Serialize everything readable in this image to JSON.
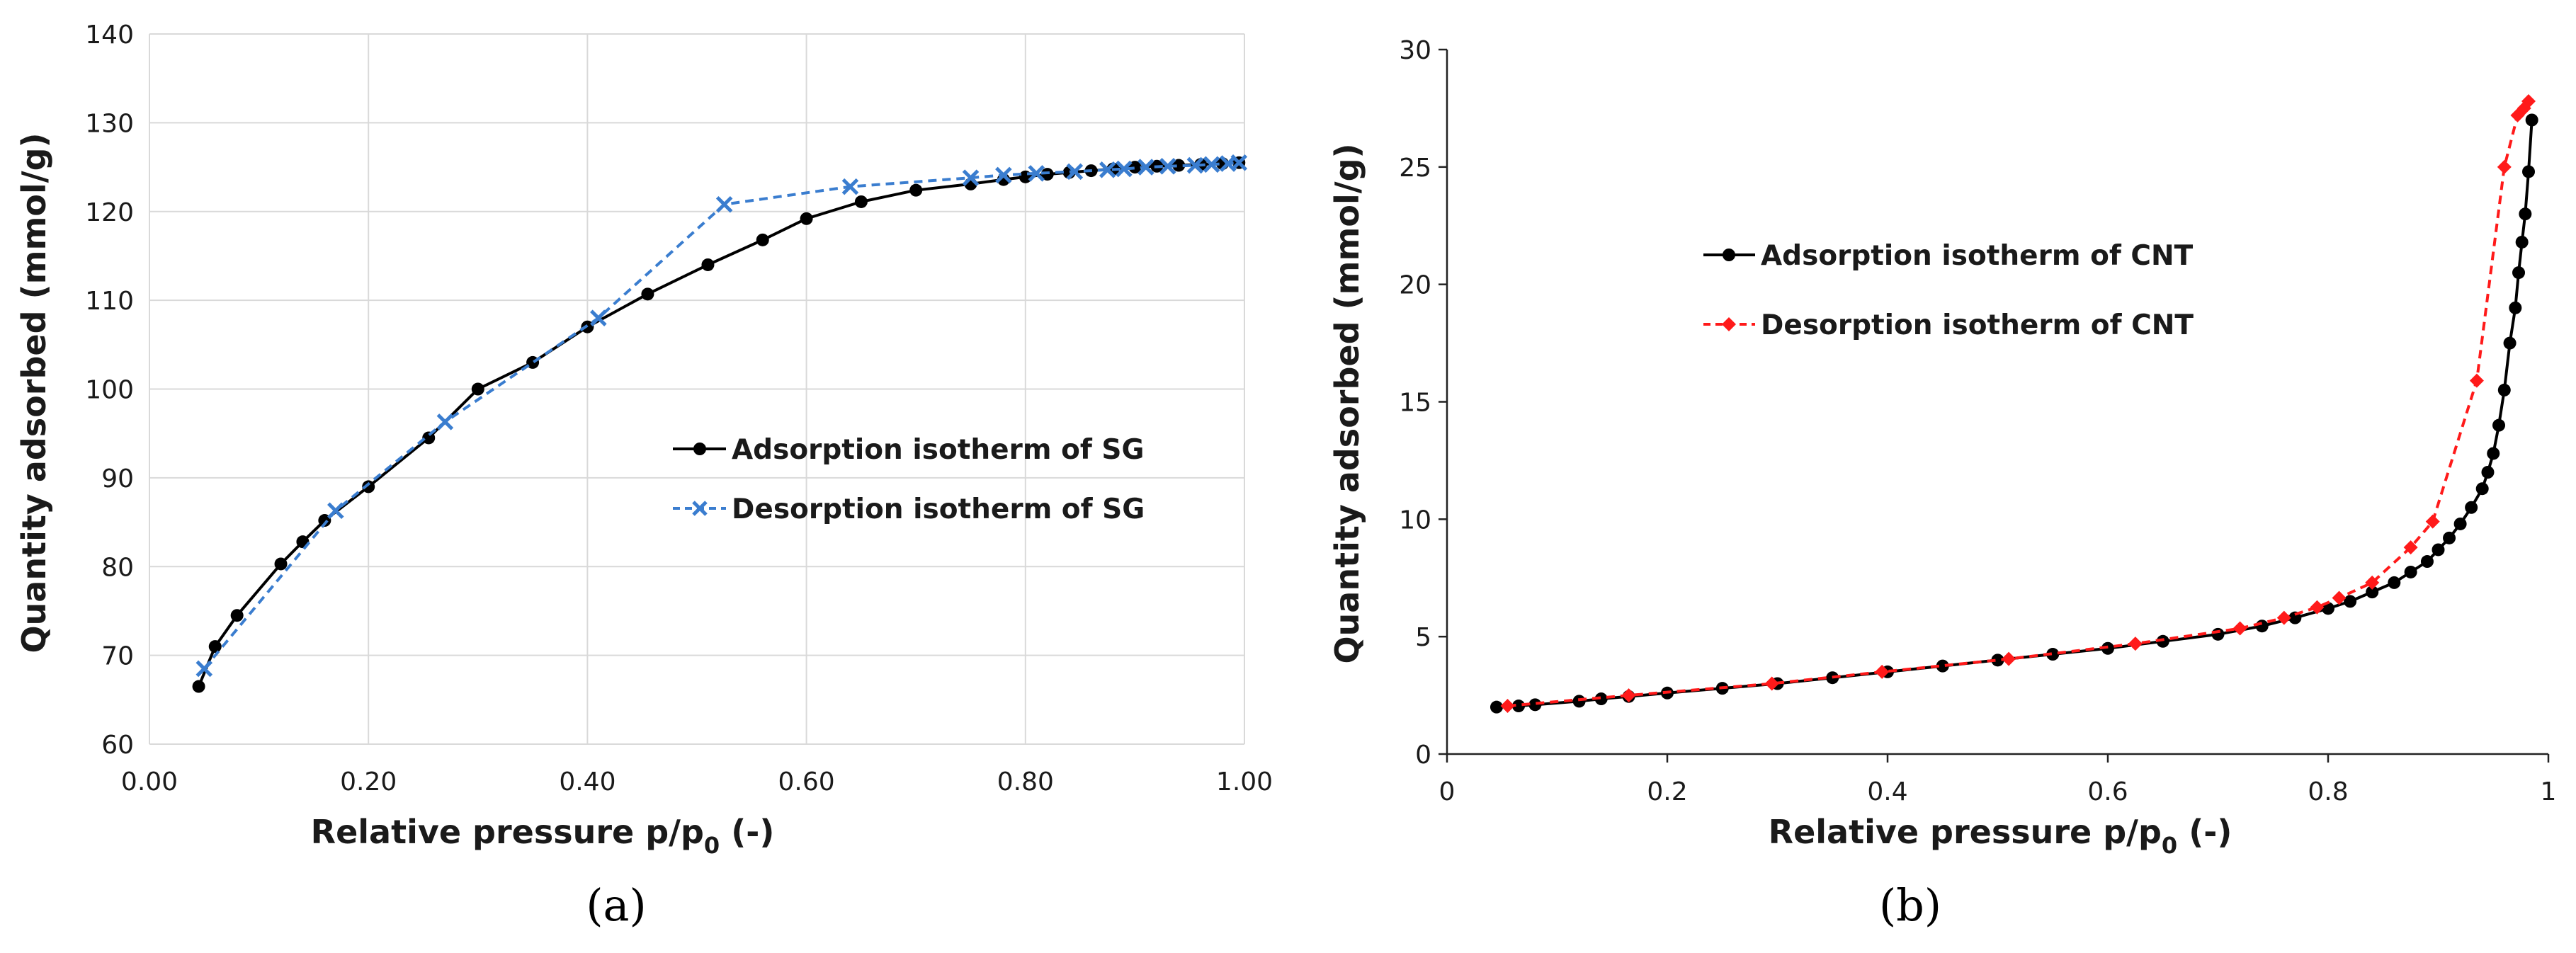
{
  "chart_data": [
    {
      "type": "line",
      "panel_label": "(a)",
      "xlabel": "Relative pressure p/p",
      "xlabel_sub": "0",
      "xlabel_suffix": " (-)",
      "ylabel": "Quantity adsorbed (mmol/g)",
      "xlim": [
        0,
        1
      ],
      "ylim": [
        60,
        140
      ],
      "xticks": [
        0,
        0.2,
        0.4,
        0.6,
        0.8,
        1.0
      ],
      "xtick_labels": [
        "0.00",
        "0.20",
        "0.40",
        "0.60",
        "0.80",
        "1.00"
      ],
      "yticks": [
        60,
        70,
        80,
        90,
        100,
        110,
        120,
        130,
        140
      ],
      "ytick_labels": [
        "60",
        "70",
        "80",
        "90",
        "100",
        "110",
        "120",
        "130",
        "140"
      ],
      "grid": true,
      "legend_position": "center-right",
      "series": [
        {
          "name": "Adsorption isotherm of SG",
          "color": "#000000",
          "marker": "circle",
          "dashed": false,
          "x": [
            0.045,
            0.06,
            0.08,
            0.12,
            0.14,
            0.16,
            0.2,
            0.255,
            0.3,
            0.35,
            0.4,
            0.455,
            0.51,
            0.56,
            0.6,
            0.65,
            0.7,
            0.75,
            0.78,
            0.8,
            0.82,
            0.84,
            0.86,
            0.88,
            0.9,
            0.92,
            0.94,
            0.96,
            0.98,
            0.995
          ],
          "y": [
            66.5,
            71,
            74.5,
            80.3,
            82.8,
            85.2,
            89,
            94.5,
            100,
            103,
            107,
            110.7,
            114,
            116.8,
            119.2,
            121.1,
            122.4,
            123.1,
            123.6,
            123.9,
            124.2,
            124.4,
            124.6,
            124.8,
            125,
            125.1,
            125.2,
            125.3,
            125.4,
            125.5
          ]
        },
        {
          "name": "Desorption isotherm of SG",
          "color": "#3a7dcf",
          "marker": "x",
          "dashed": true,
          "x": [
            0.05,
            0.17,
            0.27,
            0.41,
            0.525,
            0.64,
            0.75,
            0.78,
            0.81,
            0.845,
            0.875,
            0.89,
            0.91,
            0.93,
            0.955,
            0.97,
            0.985,
            0.995
          ],
          "y": [
            68.5,
            86.3,
            96.3,
            108,
            120.8,
            122.8,
            123.8,
            124.1,
            124.3,
            124.5,
            124.7,
            124.8,
            125,
            125.1,
            125.2,
            125.3,
            125.4,
            125.5
          ]
        }
      ]
    },
    {
      "type": "line",
      "panel_label": "(b)",
      "xlabel": "Relative pressure p/p",
      "xlabel_sub": "0",
      "xlabel_suffix": " (-)",
      "ylabel": "Quantity adsorbed (mmol/g)",
      "xlim": [
        0,
        1
      ],
      "ylim": [
        0,
        30
      ],
      "xticks": [
        0,
        0.2,
        0.4,
        0.6,
        0.8,
        1
      ],
      "xtick_labels": [
        "0",
        "0.2",
        "0.4",
        "0.6",
        "0.8",
        "1"
      ],
      "yticks": [
        0,
        5,
        10,
        15,
        20,
        25,
        30
      ],
      "ytick_labels": [
        "0",
        "5",
        "10",
        "15",
        "20",
        "25",
        "30"
      ],
      "grid": false,
      "legend_position": "top-left",
      "series": [
        {
          "name": "Adsorption isotherm of CNT",
          "color": "#000000",
          "marker": "circle",
          "dashed": false,
          "x": [
            0.045,
            0.065,
            0.08,
            0.12,
            0.14,
            0.165,
            0.2,
            0.25,
            0.3,
            0.35,
            0.4,
            0.45,
            0.5,
            0.55,
            0.6,
            0.65,
            0.7,
            0.74,
            0.77,
            0.8,
            0.82,
            0.84,
            0.86,
            0.875,
            0.89,
            0.9,
            0.91,
            0.92,
            0.93,
            0.94,
            0.945,
            0.95,
            0.955,
            0.96,
            0.965,
            0.97,
            0.973,
            0.976,
            0.979,
            0.982,
            0.985
          ],
          "y": [
            2,
            2.05,
            2.1,
            2.25,
            2.35,
            2.45,
            2.6,
            2.8,
            3.0,
            3.25,
            3.5,
            3.75,
            4.0,
            4.25,
            4.5,
            4.8,
            5.1,
            5.45,
            5.8,
            6.2,
            6.5,
            6.9,
            7.3,
            7.75,
            8.2,
            8.7,
            9.2,
            9.8,
            10.5,
            11.3,
            12.0,
            12.8,
            14.0,
            15.5,
            17.5,
            19.0,
            20.5,
            21.8,
            23.0,
            24.8,
            27.0
          ]
        },
        {
          "name": "Desorption isotherm of CNT",
          "color": "#ff1a1a",
          "marker": "diamond",
          "dashed": true,
          "x": [
            0.055,
            0.165,
            0.295,
            0.395,
            0.51,
            0.625,
            0.72,
            0.76,
            0.79,
            0.81,
            0.84,
            0.875,
            0.895,
            0.935,
            0.96,
            0.972,
            0.978,
            0.982
          ],
          "y": [
            2.05,
            2.5,
            3.0,
            3.5,
            4.05,
            4.7,
            5.35,
            5.8,
            6.25,
            6.65,
            7.3,
            8.8,
            9.9,
            15.9,
            25.0,
            27.2,
            27.5,
            27.8
          ]
        }
      ]
    }
  ]
}
